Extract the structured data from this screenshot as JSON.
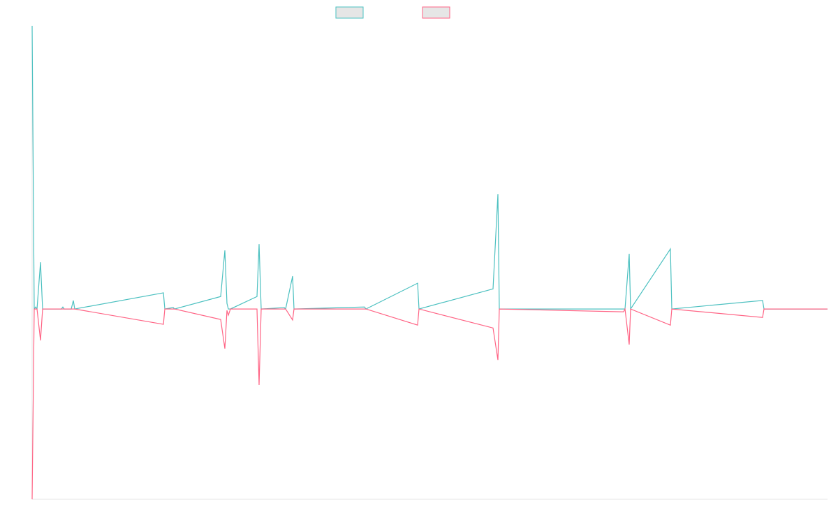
{
  "chart_data": {
    "type": "line",
    "x": [
      0,
      3,
      5,
      7,
      12,
      15,
      42,
      44,
      46,
      56,
      59,
      61,
      188,
      190,
      202,
      204,
      270,
      276,
      279,
      281,
      284,
      322,
      325,
      328,
      361,
      363,
      373,
      375,
      476,
      478,
      552,
      554,
      660,
      667,
      669,
      847,
      849,
      855,
      857,
      914,
      916,
      1046,
      1048,
      1139
    ],
    "series": [
      {
        "color": "#4bc0c0",
        "values": [
          100,
          0,
          0.7,
          0,
          16.5,
          0,
          0,
          0.7,
          0,
          0,
          3.0,
          0,
          5.7,
          0,
          0.5,
          0,
          4.4,
          20.7,
          2.0,
          0,
          0,
          4.4,
          22.9,
          0,
          0.5,
          0,
          11.6,
          0,
          0.7,
          0,
          9.1,
          0,
          7.1,
          40.6,
          0,
          0,
          0,
          19.5,
          0,
          21.2,
          0,
          3.0,
          0,
          0
        ]
      },
      {
        "color": "#ff6384",
        "values": [
          -67.2,
          0,
          0,
          0,
          -11.1,
          0,
          0,
          0,
          0,
          0,
          0,
          0,
          -5.4,
          0,
          0,
          0,
          -3.7,
          -14.0,
          -0.5,
          -2.2,
          0,
          0,
          -26.8,
          0,
          0,
          0,
          -3.9,
          0,
          0,
          0,
          -5.7,
          0,
          -6.7,
          -18.0,
          0,
          -1.0,
          0,
          -12.6,
          0,
          -5.7,
          0,
          -3.0,
          0,
          0
        ]
      }
    ],
    "xlim": [
      0,
      1139
    ],
    "ylim": [
      -67.2,
      100
    ]
  }
}
